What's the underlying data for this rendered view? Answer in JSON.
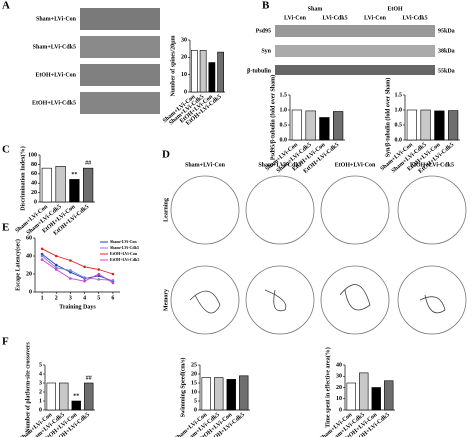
{
  "figure": {
    "panels": [
      "A",
      "B",
      "C",
      "D",
      "E",
      "F"
    ],
    "dendrite_rows": [
      "Sham+LVi-Con",
      "Sham+LVi-Cdk5",
      "EtOH+LVi-Con",
      "EtOH+LVi-Cdk5"
    ],
    "blot": {
      "groups": [
        "Sham",
        "EtOH"
      ],
      "subgroups": [
        "LVi-Con",
        "LVi-Cdk5",
        "LVi-Con",
        "LVi-Cdk5"
      ],
      "proteins": [
        "Psd95",
        "Syn",
        "β-tubulin"
      ],
      "sizes": [
        "95kDa",
        "38kDa",
        "55kDa"
      ]
    },
    "maze": {
      "columns": [
        "Sham+LVi-Con",
        "Sham+LVi-Cdk5",
        "EtOH+LVi-Con",
        "EtOH+LVi-Cdk5"
      ],
      "rows": [
        "Learning",
        "Memory"
      ]
    }
  },
  "chart_data": [
    {
      "type": "bar",
      "y_label": "Number of spines/20μm",
      "categories": [
        "Sham+LVi-Con",
        "Sham+LVi-Cdk5",
        "EtOH+LVi-Con",
        "EtOH+LVi-Cdk5"
      ],
      "values": [
        24,
        24,
        17,
        23
      ],
      "colors": [
        "#ffffff",
        "#c8c8c8",
        "#000000",
        "#6e6e6e"
      ],
      "ylim": [
        0,
        30
      ],
      "yticks": [
        0,
        10,
        20,
        30
      ]
    },
    {
      "type": "bar",
      "y_label": "Psd95/β-tubulin (fold over Sham)",
      "categories": [
        "Sham+LVi-Con",
        "Sham+LVi-Cdk5",
        "EtOH+LVi-Con",
        "EtOH+LVi-Cdk5"
      ],
      "values": [
        1.0,
        0.97,
        0.75,
        0.95
      ],
      "colors": [
        "#ffffff",
        "#c8c8c8",
        "#000000",
        "#6e6e6e"
      ],
      "ylim": [
        0,
        1.5
      ],
      "yticks": [
        {
          "value": 0,
          "label": "0.0"
        },
        0.5,
        {
          "value": 1,
          "label": "1.0"
        },
        1.5
      ]
    },
    {
      "type": "bar",
      "y_label": "Syn/β-tubulin (fold over Sham)",
      "categories": [
        "Sham+LVi-Con",
        "Sham+LVi-Cdk5",
        "EtOH+LVi-Con",
        "EtOH+LVi-Cdk5"
      ],
      "values": [
        1.0,
        1.0,
        0.97,
        0.98
      ],
      "colors": [
        "#ffffff",
        "#c8c8c8",
        "#000000",
        "#6e6e6e"
      ],
      "ylim": [
        0,
        1.5
      ],
      "yticks": [
        {
          "value": 0,
          "label": "0.0"
        },
        0.5,
        {
          "value": 1,
          "label": "1.0"
        },
        1.5
      ]
    },
    {
      "type": "bar",
      "y_label": "Discrimination Index(%)",
      "categories": [
        "Sham+LVi-Con",
        "Sham+LVi-Cdk5",
        "EtOH+LVi-Con",
        "EtOH+LVi-Cdk5"
      ],
      "values": [
        72,
        76,
        48,
        72
      ],
      "bar_annotations": [
        null,
        null,
        "**",
        "##"
      ],
      "colors": [
        "#ffffff",
        "#c8c8c8",
        "#000000",
        "#6e6e6e"
      ],
      "ylim": [
        0,
        100
      ],
      "yticks": [
        0,
        20,
        40,
        60,
        80,
        100
      ]
    },
    {
      "type": "line",
      "y_label": "Escape Latency(sec)",
      "x_label": "Training Days",
      "x": [
        1,
        2,
        3,
        4,
        5,
        6
      ],
      "xlim": [
        0.5,
        6.5
      ],
      "xticks": [
        1,
        2,
        3,
        4,
        5,
        6
      ],
      "ylim": [
        0,
        60
      ],
      "yticks": [
        0,
        20,
        40,
        60
      ],
      "series": [
        {
          "name": "Sham+LVi-Con",
          "color": "#1f3fbf",
          "values": [
            42,
            30,
            22,
            15,
            18,
            12
          ]
        },
        {
          "name": "Sham+LVi-Cdk5",
          "color": "#7f7fdf",
          "values": [
            40,
            27,
            24,
            16,
            14,
            13
          ]
        },
        {
          "name": "EtOH+LVi-Con",
          "color": "#e02020",
          "values": [
            48,
            40,
            35,
            28,
            25,
            20
          ]
        },
        {
          "name": "EtOH+LVi-Cdk5",
          "color": "#d040d0",
          "values": [
            36,
            25,
            15,
            12,
            20,
            10
          ]
        }
      ]
    },
    {
      "type": "bar",
      "y_label": "Number of platform-site crossovers",
      "categories": [
        "Sham+LVi-Con",
        "Sham+LVi-Cdk5",
        "EtOH+LVi-Con",
        "EtOH+LVi-Cdk5"
      ],
      "values": [
        3,
        3,
        1,
        3
      ],
      "bar_annotations": [
        null,
        null,
        "**",
        "##"
      ],
      "colors": [
        "#ffffff",
        "#c8c8c8",
        "#000000",
        "#6e6e6e"
      ],
      "ylim": [
        0,
        5
      ],
      "yticks": [
        0,
        1,
        2,
        3,
        4,
        5
      ]
    },
    {
      "type": "bar",
      "y_label": "Swimming Speed(cm/s)",
      "categories": [
        "Sham+LVi-Con",
        "Sham+LVi-Cdk5",
        "EtOH+LVi-Con",
        "EtOH+LVi-Cdk5"
      ],
      "values": [
        18,
        18,
        17,
        19
      ],
      "colors": [
        "#ffffff",
        "#c8c8c8",
        "#000000",
        "#6e6e6e"
      ],
      "ylim": [
        0,
        25
      ],
      "yticks": [
        0,
        5,
        10,
        15,
        20,
        25
      ]
    },
    {
      "type": "bar",
      "y_label": "Time spent in effective area(%)",
      "categories": [
        "Sham+LVi-Con",
        "Sham+LVi-Cdk5",
        "EtOH+LVi-Con",
        "EtOH+LVi-Cdk5"
      ],
      "values": [
        24,
        33,
        20,
        26
      ],
      "colors": [
        "#ffffff",
        "#c8c8c8",
        "#000000",
        "#6e6e6e"
      ],
      "ylim": [
        0,
        40
      ],
      "yticks": [
        0,
        10,
        20,
        30,
        40
      ]
    }
  ]
}
